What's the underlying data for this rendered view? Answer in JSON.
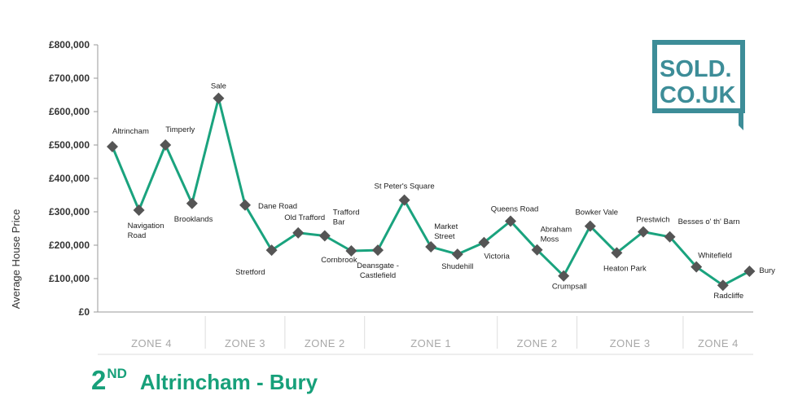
{
  "chart_data": {
    "type": "line",
    "title": "Altrincham - Bury",
    "rank": "2",
    "rank_suffix": "ND",
    "xlabel": "",
    "ylabel": "Average House Price",
    "ylim": [
      0,
      800000
    ],
    "yticks": [
      0,
      100000,
      200000,
      300000,
      400000,
      500000,
      600000,
      700000,
      800000
    ],
    "ytick_labels": [
      "£0",
      "£100,000",
      "£200,000",
      "£300,000",
      "£400,000",
      "£500,000",
      "£600,000",
      "£700,000",
      "£800,000"
    ],
    "grid": false,
    "line_color": "#1aa37e",
    "marker_color": "#555555",
    "series": [
      {
        "name": "",
        "points": [
          {
            "label": "Altrincham",
            "value": 495000
          },
          {
            "label": "Navigation Road",
            "value": 305000
          },
          {
            "label": "Timperly",
            "value": 500000
          },
          {
            "label": "Brooklands",
            "value": 325000
          },
          {
            "label": "Sale",
            "value": 640000
          },
          {
            "label": "Dane Road",
            "value": 320000
          },
          {
            "label": "Stretford",
            "value": 185000
          },
          {
            "label": "Old Trafford",
            "value": 237000
          },
          {
            "label": "Trafford Bar",
            "value": 228000
          },
          {
            "label": "Cornbrook",
            "value": 183000
          },
          {
            "label": "Deansgate - Castlefield",
            "value": 185000
          },
          {
            "label": "St Peter's Square",
            "value": 335000
          },
          {
            "label": "Market Street",
            "value": 195000
          },
          {
            "label": "Shudehill",
            "value": 173000
          },
          {
            "label": "Victoria",
            "value": 208000
          },
          {
            "label": "Queens Road",
            "value": 272000
          },
          {
            "label": "Abraham Moss",
            "value": 186000
          },
          {
            "label": "Crumpsall",
            "value": 108000
          },
          {
            "label": "Bowker Vale",
            "value": 257000
          },
          {
            "label": "Heaton Park",
            "value": 177000
          },
          {
            "label": "Prestwich",
            "value": 240000
          },
          {
            "label": "Besses o' th' Barn",
            "value": 225000
          },
          {
            "label": "Whitefield",
            "value": 135000
          },
          {
            "label": "Radcliffe",
            "value": 80000
          },
          {
            "label": "Bury",
            "value": 122000
          }
        ]
      }
    ],
    "zones": [
      {
        "label": "ZONE 4",
        "from": 0,
        "to": 3
      },
      {
        "label": "ZONE 3",
        "from": 4,
        "to": 6
      },
      {
        "label": "ZONE 2",
        "from": 7,
        "to": 9
      },
      {
        "label": "ZONE 1",
        "from": 10,
        "to": 14
      },
      {
        "label": "ZONE 2",
        "from": 15,
        "to": 17
      },
      {
        "label": "ZONE 3",
        "from": 18,
        "to": 21
      },
      {
        "label": "ZONE 4",
        "from": 22,
        "to": 24
      }
    ]
  },
  "logo": {
    "line1": "SOLD.",
    "line2": "CO.UK",
    "color": "#3d8d98"
  }
}
